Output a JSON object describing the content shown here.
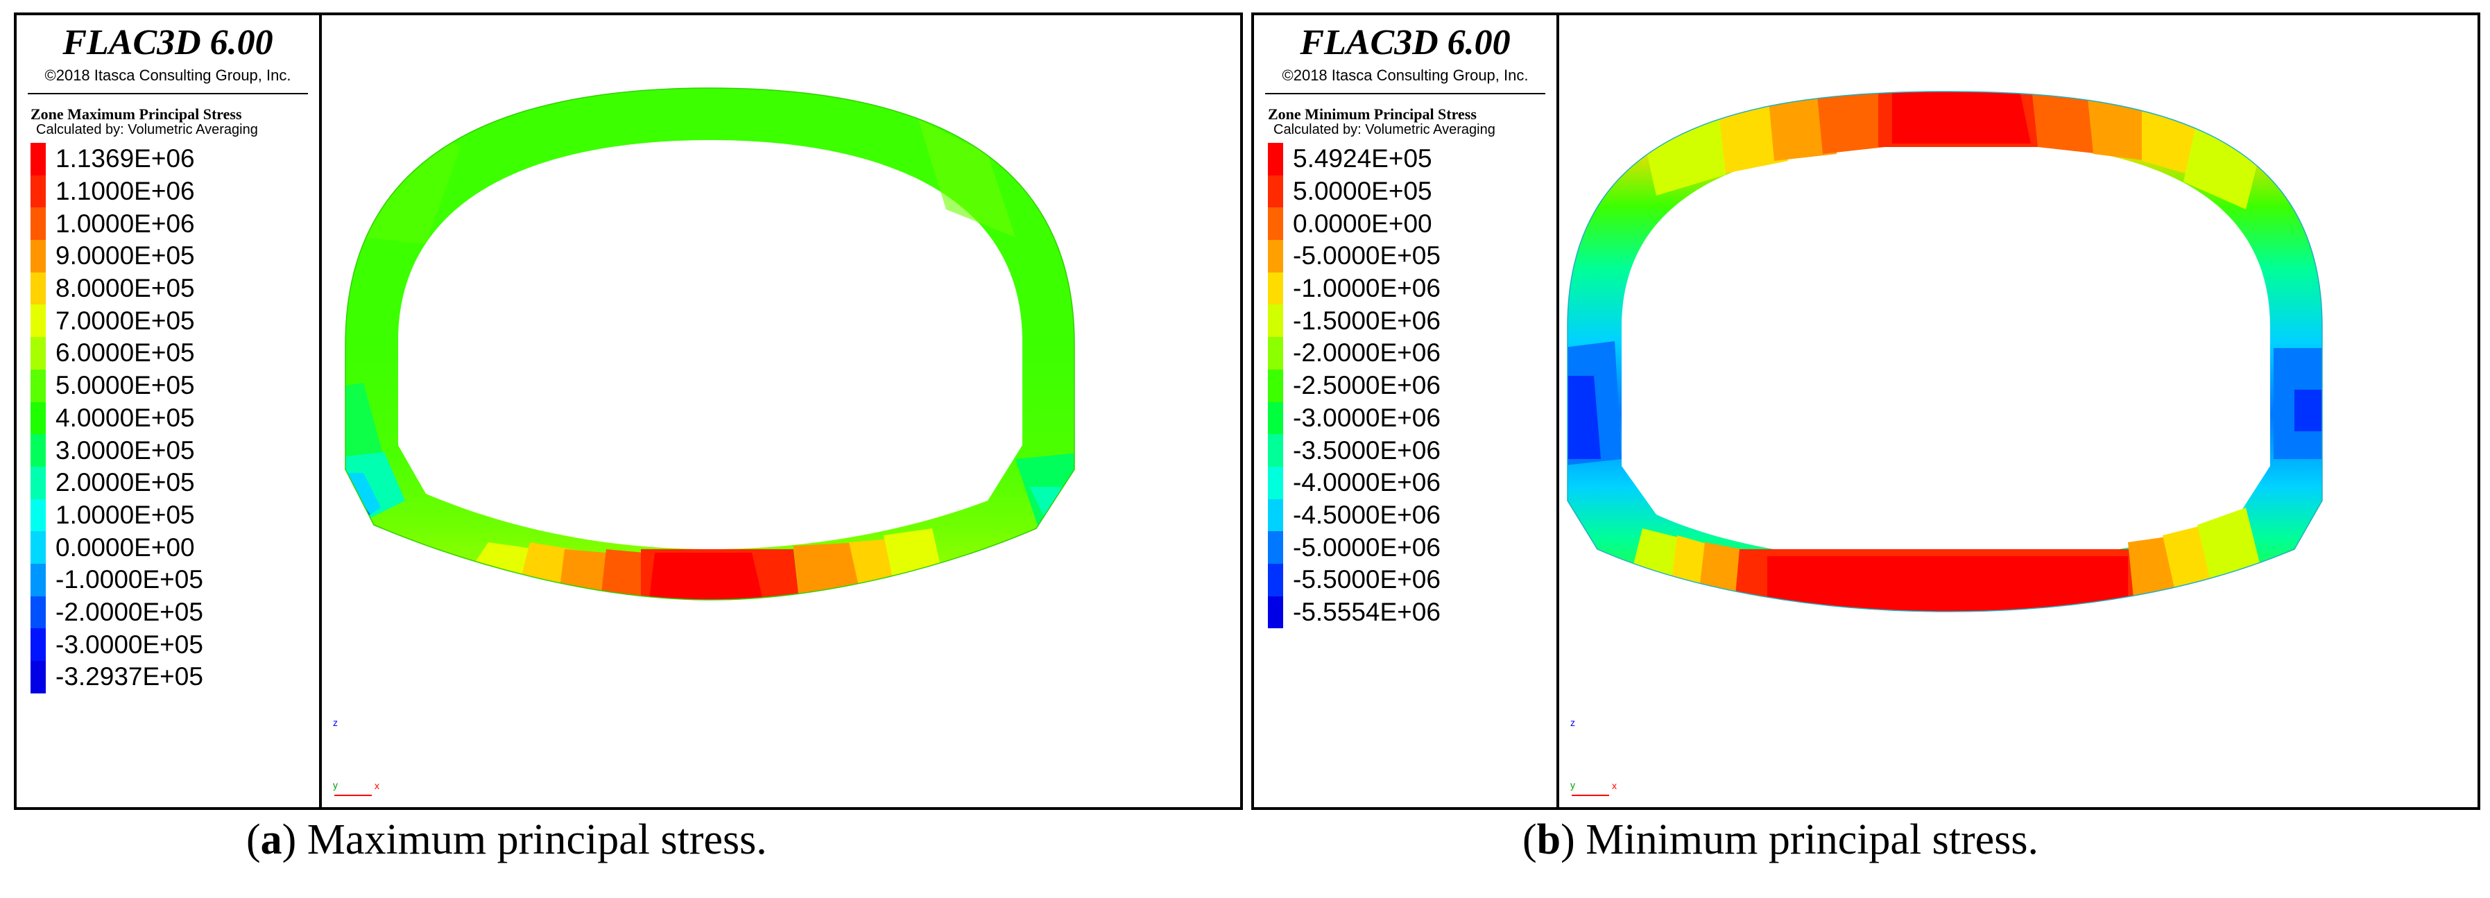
{
  "panels": [
    {
      "id": "a",
      "software": "FLAC3D 6.00",
      "copyright": "©2018 Itasca Consulting Group, Inc.",
      "legend_title": "Zone Maximum Principal Stress",
      "legend_subtitle": "Calculated by: Volumetric Averaging",
      "legend": [
        {
          "label": "1.1369E+06",
          "color": "#ff0000"
        },
        {
          "label": "1.1000E+06",
          "color": "#ff2600"
        },
        {
          "label": "1.0000E+06",
          "color": "#ff5a00"
        },
        {
          "label": "9.0000E+05",
          "color": "#ff9600"
        },
        {
          "label": "8.0000E+05",
          "color": "#ffd200"
        },
        {
          "label": "7.0000E+05",
          "color": "#e6ff00"
        },
        {
          "label": "6.0000E+05",
          "color": "#a8ff00"
        },
        {
          "label": "5.0000E+05",
          "color": "#5aff00"
        },
        {
          "label": "4.0000E+05",
          "color": "#1eff00"
        },
        {
          "label": "3.0000E+05",
          "color": "#00ff5a"
        },
        {
          "label": "2.0000E+05",
          "color": "#00ffb0"
        },
        {
          "label": "1.0000E+05",
          "color": "#00fff0"
        },
        {
          "label": "0.0000E+00",
          "color": "#00d8ff"
        },
        {
          "label": "-1.0000E+05",
          "color": "#0096ff"
        },
        {
          "label": "-2.0000E+05",
          "color": "#0050ff"
        },
        {
          "label": "-3.0000E+05",
          "color": "#0014ff"
        },
        {
          "label": "-3.2937E+05",
          "color": "#0000e6"
        }
      ],
      "axes": {
        "z": "z",
        "y": "y",
        "x": "x"
      },
      "caption_letter": "a",
      "caption_text": ") Maximum principal stress."
    },
    {
      "id": "b",
      "software": "FLAC3D 6.00",
      "copyright": "©2018 Itasca Consulting Group, Inc.",
      "legend_title": "Zone Minimum Principal Stress",
      "legend_subtitle": "Calculated by: Volumetric Averaging",
      "legend": [
        {
          "label": "5.4924E+05",
          "color": "#ff0000"
        },
        {
          "label": "5.0000E+05",
          "color": "#ff2a00"
        },
        {
          "label": "0.0000E+00",
          "color": "#ff6400"
        },
        {
          "label": "-5.0000E+05",
          "color": "#ffa000"
        },
        {
          "label": "-1.0000E+06",
          "color": "#ffdc00"
        },
        {
          "label": "-1.5000E+06",
          "color": "#d2ff00"
        },
        {
          "label": "-2.0000E+06",
          "color": "#8cff00"
        },
        {
          "label": "-2.5000E+06",
          "color": "#3cff00"
        },
        {
          "label": "-3.0000E+06",
          "color": "#00ff3c"
        },
        {
          "label": "-3.5000E+06",
          "color": "#00ff96"
        },
        {
          "label": "-4.0000E+06",
          "color": "#00ffdc"
        },
        {
          "label": "-4.5000E+06",
          "color": "#00d2ff"
        },
        {
          "label": "-5.0000E+06",
          "color": "#0078ff"
        },
        {
          "label": "-5.5000E+06",
          "color": "#0032ff"
        },
        {
          "label": "-5.5554E+06",
          "color": "#0000e6"
        }
      ],
      "axes": {
        "z": "z",
        "y": "y",
        "x": "x"
      },
      "caption_letter": "b",
      "caption_text": ") Minimum principal stress."
    }
  ]
}
